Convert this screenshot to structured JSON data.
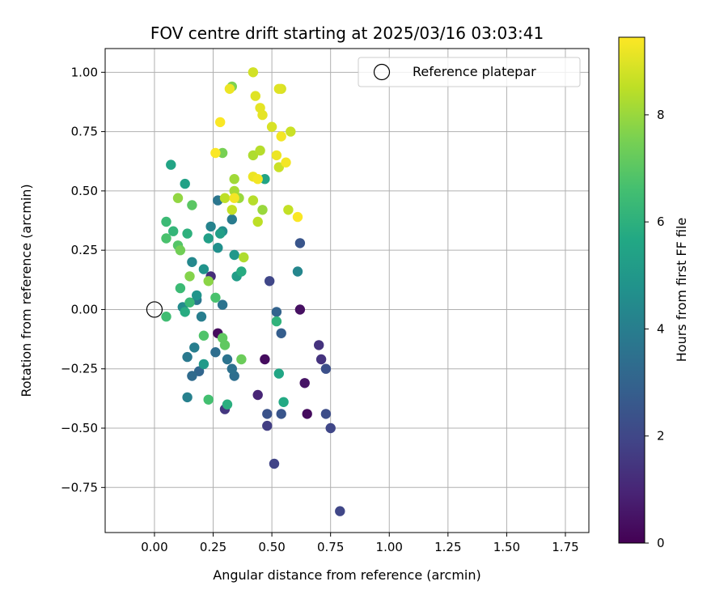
{
  "chart_data": {
    "type": "scatter",
    "title": "FOV centre drift starting at 2025/03/16 03:03:41",
    "xlabel": "Angular distance from reference (arcmin)",
    "ylabel": "Rotation from reference (arcmin)",
    "xlim": [
      -0.21,
      1.85
    ],
    "ylim": [
      -0.94,
      1.1
    ],
    "xticks": [
      0.0,
      0.25,
      0.5,
      0.75,
      1.0,
      1.25,
      1.5,
      1.75
    ],
    "xtick_labels": [
      "0.00",
      "0.25",
      "0.50",
      "0.75",
      "1.00",
      "1.25",
      "1.50",
      "1.75"
    ],
    "yticks": [
      -0.75,
      -0.5,
      -0.25,
      0.0,
      0.25,
      0.5,
      0.75,
      1.0
    ],
    "ytick_labels": [
      "−0.75",
      "−0.50",
      "−0.25",
      "0.00",
      "0.25",
      "0.50",
      "0.75",
      "1.00"
    ],
    "grid": true,
    "legend": {
      "position": "top-right",
      "entries": [
        "Reference platepar"
      ]
    },
    "reference_point": {
      "x": 0.0,
      "y": 0.0,
      "label": "Reference platepar"
    },
    "colorbar": {
      "label": "Hours from first FF file",
      "colormap": "viridis",
      "range": [
        0,
        9.45
      ],
      "ticks": [
        0,
        2,
        4,
        6,
        8
      ],
      "tick_labels": [
        "0",
        "2",
        "4",
        "6",
        "8"
      ]
    },
    "points": [
      {
        "x": 0.27,
        "y": -0.1,
        "hours": 0.3
      },
      {
        "x": 0.47,
        "y": -0.21,
        "hours": 0.3
      },
      {
        "x": 0.62,
        "y": 0.0,
        "hours": 0.4
      },
      {
        "x": 0.65,
        "y": -0.44,
        "hours": 0.3
      },
      {
        "x": 0.64,
        "y": -0.31,
        "hours": 0.5
      },
      {
        "x": 0.44,
        "y": -0.36,
        "hours": 1.0
      },
      {
        "x": 0.24,
        "y": 0.14,
        "hours": 1.2
      },
      {
        "x": 0.7,
        "y": -0.15,
        "hours": 1.4
      },
      {
        "x": 0.71,
        "y": -0.21,
        "hours": 1.4
      },
      {
        "x": 0.3,
        "y": -0.42,
        "hours": 1.5
      },
      {
        "x": 0.48,
        "y": -0.49,
        "hours": 1.7
      },
      {
        "x": 0.51,
        "y": -0.65,
        "hours": 1.9
      },
      {
        "x": 0.49,
        "y": 0.12,
        "hours": 2.0
      },
      {
        "x": 0.79,
        "y": -0.85,
        "hours": 2.0
      },
      {
        "x": 0.75,
        "y": -0.5,
        "hours": 2.0
      },
      {
        "x": 0.73,
        "y": -0.44,
        "hours": 2.2
      },
      {
        "x": 0.73,
        "y": -0.25,
        "hours": 2.3
      },
      {
        "x": 0.48,
        "y": -0.44,
        "hours": 2.4
      },
      {
        "x": 0.54,
        "y": -0.44,
        "hours": 2.5
      },
      {
        "x": 0.62,
        "y": 0.28,
        "hours": 2.5
      },
      {
        "x": 0.54,
        "y": -0.1,
        "hours": 2.8
      },
      {
        "x": 0.52,
        "y": -0.01,
        "hours": 3.0
      },
      {
        "x": 0.19,
        "y": -0.26,
        "hours": 3.1
      },
      {
        "x": 0.16,
        "y": -0.28,
        "hours": 3.3
      },
      {
        "x": 0.26,
        "y": -0.18,
        "hours": 3.4
      },
      {
        "x": 0.34,
        "y": -0.28,
        "hours": 3.4
      },
      {
        "x": 0.33,
        "y": -0.25,
        "hours": 3.5
      },
      {
        "x": 0.31,
        "y": -0.21,
        "hours": 3.6
      },
      {
        "x": 0.29,
        "y": 0.02,
        "hours": 3.6
      },
      {
        "x": 0.18,
        "y": 0.04,
        "hours": 3.7
      },
      {
        "x": 0.27,
        "y": 0.46,
        "hours": 3.7
      },
      {
        "x": 0.14,
        "y": -0.2,
        "hours": 3.8
      },
      {
        "x": 0.33,
        "y": 0.38,
        "hours": 3.9
      },
      {
        "x": 0.17,
        "y": -0.16,
        "hours": 4.0
      },
      {
        "x": 0.2,
        "y": -0.03,
        "hours": 4.0
      },
      {
        "x": 0.14,
        "y": -0.37,
        "hours": 4.1
      },
      {
        "x": 0.24,
        "y": 0.35,
        "hours": 4.2
      },
      {
        "x": 0.61,
        "y": 0.16,
        "hours": 4.3
      },
      {
        "x": 0.16,
        "y": 0.2,
        "hours": 4.4
      },
      {
        "x": 0.12,
        "y": 0.01,
        "hours": 4.5
      },
      {
        "x": 0.29,
        "y": 0.33,
        "hours": 4.6
      },
      {
        "x": 0.27,
        "y": 0.26,
        "hours": 4.7
      },
      {
        "x": 0.21,
        "y": 0.17,
        "hours": 4.8
      },
      {
        "x": 0.18,
        "y": 0.06,
        "hours": 4.9
      },
      {
        "x": 0.34,
        "y": 0.23,
        "hours": 5.0
      },
      {
        "x": 0.21,
        "y": -0.23,
        "hours": 5.1
      },
      {
        "x": 0.35,
        "y": 0.14,
        "hours": 5.2
      },
      {
        "x": 0.23,
        "y": 0.3,
        "hours": 5.3
      },
      {
        "x": 0.28,
        "y": 0.32,
        "hours": 5.3
      },
      {
        "x": 0.13,
        "y": 0.53,
        "hours": 5.4
      },
      {
        "x": 0.07,
        "y": 0.61,
        "hours": 5.5
      },
      {
        "x": 0.47,
        "y": 0.55,
        "hours": 5.5
      },
      {
        "x": 0.53,
        "y": -0.27,
        "hours": 5.6
      },
      {
        "x": 0.55,
        "y": -0.39,
        "hours": 5.7
      },
      {
        "x": 0.13,
        "y": -0.01,
        "hours": 5.8
      },
      {
        "x": 0.37,
        "y": 0.16,
        "hours": 5.8
      },
      {
        "x": 0.31,
        "y": -0.4,
        "hours": 5.9
      },
      {
        "x": 0.14,
        "y": 0.32,
        "hours": 6.0
      },
      {
        "x": 0.52,
        "y": -0.05,
        "hours": 6.1
      },
      {
        "x": 0.08,
        "y": 0.33,
        "hours": 6.2
      },
      {
        "x": 0.15,
        "y": 0.03,
        "hours": 6.3
      },
      {
        "x": 0.11,
        "y": 0.09,
        "hours": 6.4
      },
      {
        "x": 0.05,
        "y": 0.37,
        "hours": 6.4
      },
      {
        "x": 0.05,
        "y": -0.03,
        "hours": 6.5
      },
      {
        "x": 0.23,
        "y": -0.38,
        "hours": 6.6
      },
      {
        "x": 0.05,
        "y": 0.3,
        "hours": 6.7
      },
      {
        "x": 0.26,
        "y": 0.05,
        "hours": 6.7
      },
      {
        "x": 0.21,
        "y": -0.11,
        "hours": 6.8
      },
      {
        "x": 0.1,
        "y": 0.27,
        "hours": 6.9
      },
      {
        "x": 0.16,
        "y": 0.44,
        "hours": 7.0
      },
      {
        "x": 0.29,
        "y": -0.12,
        "hours": 7.1
      },
      {
        "x": 0.3,
        "y": -0.15,
        "hours": 7.1
      },
      {
        "x": 0.37,
        "y": -0.21,
        "hours": 7.3
      },
      {
        "x": 0.11,
        "y": 0.25,
        "hours": 7.4
      },
      {
        "x": 0.29,
        "y": 0.66,
        "hours": 7.5
      },
      {
        "x": 0.33,
        "y": 0.94,
        "hours": 7.6
      },
      {
        "x": 0.15,
        "y": 0.14,
        "hours": 7.7
      },
      {
        "x": 0.23,
        "y": 0.12,
        "hours": 7.8
      },
      {
        "x": 0.1,
        "y": 0.47,
        "hours": 7.9
      },
      {
        "x": 0.36,
        "y": 0.47,
        "hours": 8.0
      },
      {
        "x": 0.46,
        "y": 0.42,
        "hours": 8.0
      },
      {
        "x": 0.34,
        "y": 0.55,
        "hours": 8.1
      },
      {
        "x": 0.34,
        "y": 0.5,
        "hours": 8.2
      },
      {
        "x": 0.38,
        "y": 0.22,
        "hours": 8.3
      },
      {
        "x": 0.42,
        "y": 0.65,
        "hours": 8.3
      },
      {
        "x": 0.45,
        "y": 0.67,
        "hours": 8.4
      },
      {
        "x": 0.42,
        "y": 0.46,
        "hours": 8.4
      },
      {
        "x": 0.44,
        "y": 0.37,
        "hours": 8.5
      },
      {
        "x": 0.3,
        "y": 0.47,
        "hours": 8.5
      },
      {
        "x": 0.33,
        "y": 0.42,
        "hours": 8.6
      },
      {
        "x": 0.57,
        "y": 0.42,
        "hours": 8.6
      },
      {
        "x": 0.53,
        "y": 0.6,
        "hours": 8.7
      },
      {
        "x": 0.58,
        "y": 0.75,
        "hours": 8.7
      },
      {
        "x": 0.42,
        "y": 1.0,
        "hours": 8.8
      },
      {
        "x": 0.54,
        "y": 0.93,
        "hours": 8.9
      },
      {
        "x": 0.5,
        "y": 0.77,
        "hours": 8.9
      },
      {
        "x": 0.43,
        "y": 0.9,
        "hours": 9.0
      },
      {
        "x": 0.53,
        "y": 0.93,
        "hours": 9.0
      },
      {
        "x": 0.45,
        "y": 0.85,
        "hours": 9.1
      },
      {
        "x": 0.46,
        "y": 0.82,
        "hours": 9.1
      },
      {
        "x": 0.32,
        "y": 0.93,
        "hours": 9.2
      },
      {
        "x": 0.52,
        "y": 0.65,
        "hours": 9.2
      },
      {
        "x": 0.42,
        "y": 0.56,
        "hours": 9.2
      },
      {
        "x": 0.44,
        "y": 0.55,
        "hours": 9.3
      },
      {
        "x": 0.54,
        "y": 0.73,
        "hours": 9.3
      },
      {
        "x": 0.56,
        "y": 0.62,
        "hours": 9.3
      },
      {
        "x": 0.34,
        "y": 0.47,
        "hours": 9.3
      },
      {
        "x": 0.28,
        "y": 0.79,
        "hours": 9.4
      },
      {
        "x": 0.26,
        "y": 0.66,
        "hours": 9.4
      },
      {
        "x": 0.61,
        "y": 0.39,
        "hours": 9.4
      }
    ]
  }
}
